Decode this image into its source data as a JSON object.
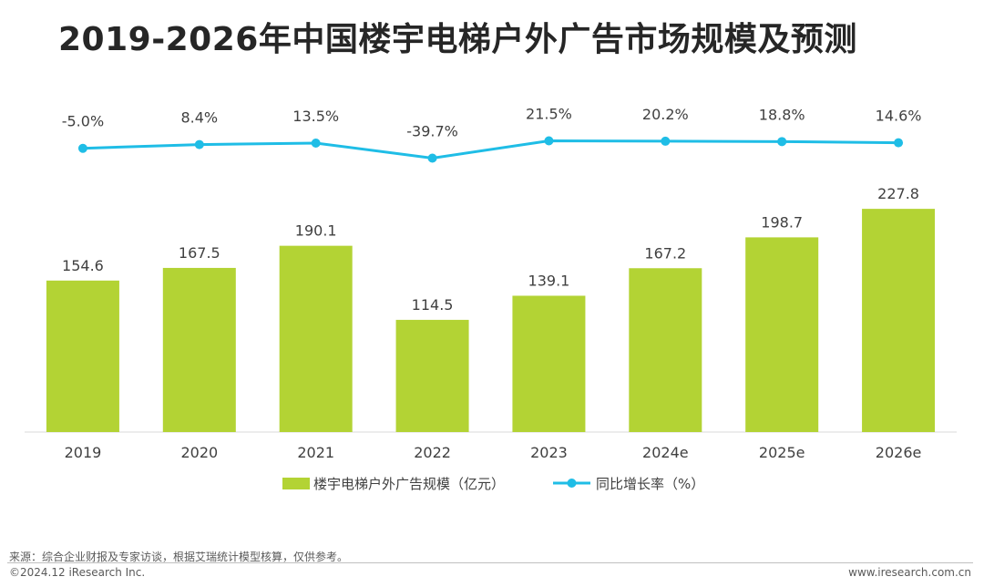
{
  "chart_data": {
    "type": "bar+line",
    "title": "2019-2026年中国楼宇电梯户外广告市场规模及预测",
    "categories": [
      "2019",
      "2020",
      "2021",
      "2022",
      "2023",
      "2024e",
      "2025e",
      "2026e"
    ],
    "series": [
      {
        "name": "楼宇电梯户外广告规模（亿元）",
        "type": "bar",
        "color": "#b3d334",
        "values": [
          154.6,
          167.5,
          190.1,
          114.5,
          139.1,
          167.2,
          198.7,
          227.8
        ],
        "labels": [
          "154.6",
          "167.5",
          "190.1",
          "114.5",
          "139.1",
          "167.2",
          "198.7",
          "227.8"
        ]
      },
      {
        "name": "同比增长率（%）",
        "type": "line",
        "color": "#1fbde6",
        "values": [
          -5.0,
          8.4,
          13.5,
          -39.7,
          21.5,
          20.2,
          18.8,
          14.6
        ],
        "labels": [
          "-5.0%",
          "8.4%",
          "13.5%",
          "-39.7%",
          "21.5%",
          "20.2%",
          "18.8%",
          "14.6%"
        ]
      }
    ],
    "legend_position": "bottom-center"
  },
  "footer": {
    "source": "来源：综合企业财报及专家访谈，根据艾瑞统计模型核算，仅供参考。",
    "copyright": "©2024.12 iResearch Inc.",
    "site": "www.iresearch.com.cn"
  }
}
